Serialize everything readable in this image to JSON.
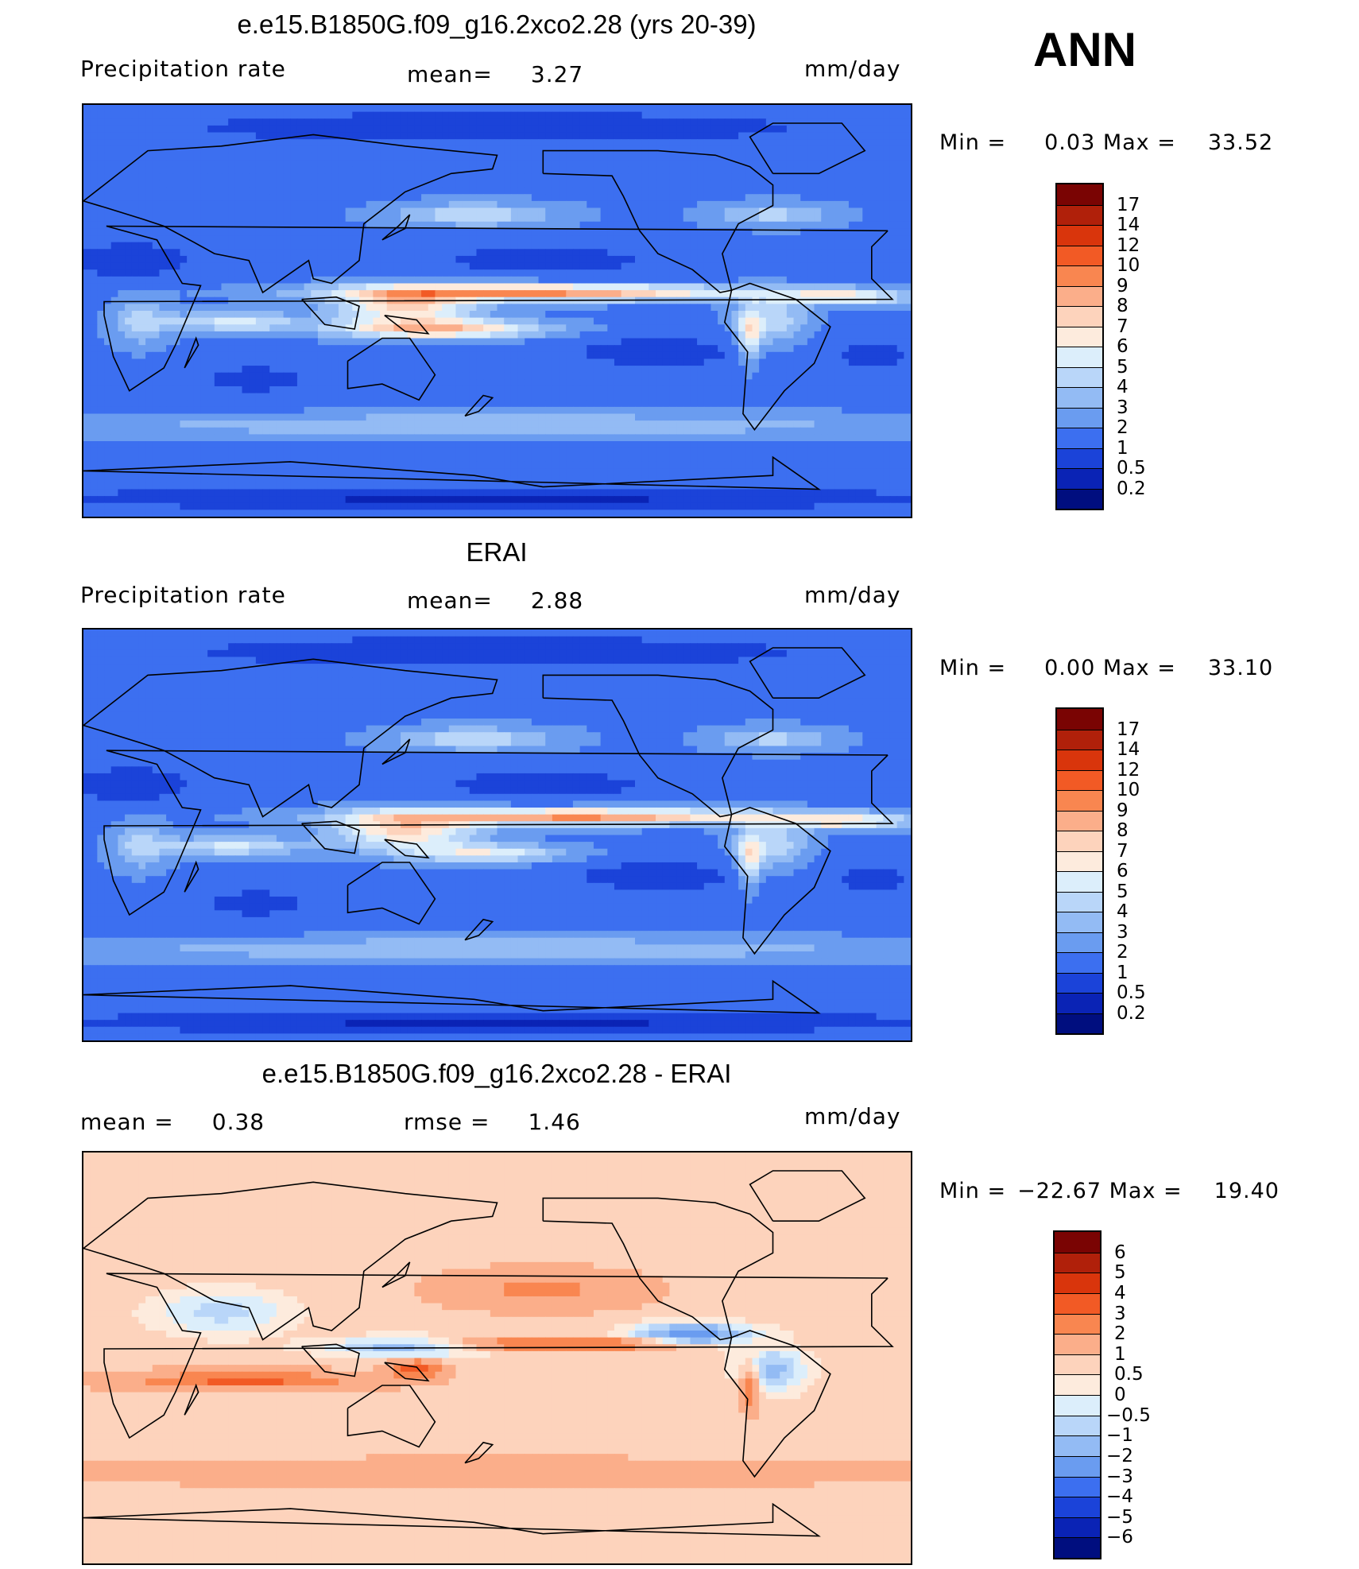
{
  "chart_data": [
    {
      "type": "heatmap",
      "title": "e.e15.B1850G.f09_g16.2xco2.28 (yrs 20-39)",
      "variable": "Precipitation rate",
      "mean_label": "mean=",
      "mean": "3.27",
      "units": "mm/day",
      "min_label": "Min =",
      "min": "0.03",
      "max_label": "Max =",
      "max": "33.52",
      "colorbar": {
        "labels": [
          "17",
          "14",
          "12",
          "10",
          "9",
          "8",
          "7",
          "6",
          "5",
          "4",
          "3",
          "2",
          "1",
          "0.5",
          "0.2"
        ],
        "colors": [
          "#7a0403",
          "#b0200a",
          "#d9350c",
          "#f25a25",
          "#f98650",
          "#fbae8a",
          "#fdd3bc",
          "#fdebdd",
          "#dceefb",
          "#b9d6f9",
          "#93bbf4",
          "#6a9cf0",
          "#3c6ff0",
          "#1b43d9",
          "#0a23b5",
          "#000e7f"
        ]
      },
      "field": "model_precip"
    },
    {
      "type": "heatmap",
      "title": "ERAI",
      "variable": "Precipitation rate",
      "mean_label": "mean=",
      "mean": "2.88",
      "units": "mm/day",
      "min_label": "Min =",
      "min": "0.00",
      "max_label": "Max =",
      "max": "33.10",
      "colorbar": {
        "labels": [
          "17",
          "14",
          "12",
          "10",
          "9",
          "8",
          "7",
          "6",
          "5",
          "4",
          "3",
          "2",
          "1",
          "0.5",
          "0.2"
        ],
        "colors": [
          "#7a0403",
          "#b0200a",
          "#d9350c",
          "#f25a25",
          "#f98650",
          "#fbae8a",
          "#fdd3bc",
          "#fdebdd",
          "#dceefb",
          "#b9d6f9",
          "#93bbf4",
          "#6a9cf0",
          "#3c6ff0",
          "#1b43d9",
          "#0a23b5",
          "#000e7f"
        ]
      },
      "field": "obs_precip"
    },
    {
      "type": "heatmap",
      "title": "e.e15.B1850G.f09_g16.2xco2.28 - ERAI",
      "mean_label": "mean =",
      "mean": "0.38",
      "rmse_label": "rmse =",
      "rmse": "1.46",
      "units": "mm/day",
      "min_label": "Min =",
      "min": "−22.67",
      "max_label": "Max =",
      "max": "19.40",
      "colorbar": {
        "labels": [
          "6",
          "5",
          "4",
          "3",
          "2",
          "1",
          "0.5",
          "0",
          "−0.5",
          "−1",
          "−2",
          "−3",
          "−4",
          "−5",
          "−6"
        ],
        "colors": [
          "#7a0403",
          "#b0200a",
          "#d9350c",
          "#f25a25",
          "#f98650",
          "#fbae8a",
          "#fdd3bc",
          "#fdebdd",
          "#dceefb",
          "#b9d6f9",
          "#93bbf4",
          "#6a9cf0",
          "#3c6ff0",
          "#1b43d9",
          "#0a23b5",
          "#000e7f"
        ]
      },
      "field": "difference"
    }
  ],
  "season": "ANN"
}
